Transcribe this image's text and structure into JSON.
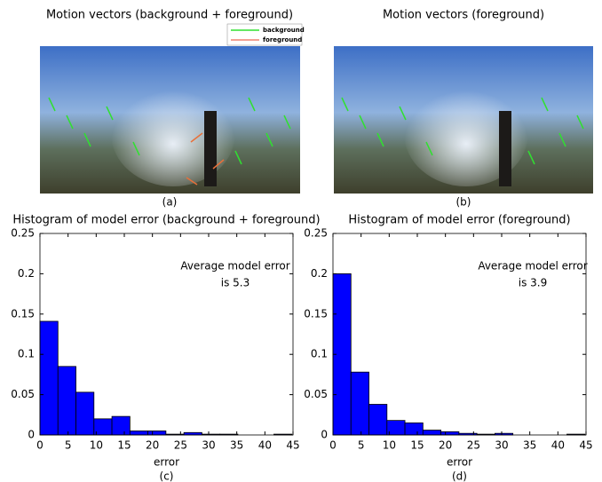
{
  "figure": {
    "panels": [
      {
        "title": "Motion vectors (background + foreground)",
        "caption": "(a)",
        "legend": [
          "background",
          "foreground"
        ]
      },
      {
        "title": "Motion vectors (foreground)",
        "caption": "(b)"
      }
    ]
  },
  "chart_data": [
    {
      "type": "histogram",
      "title": "Histogram of model error (background + foreground)",
      "caption": "(c)",
      "xlabel": "error",
      "annotation": [
        "Average model error",
        "is 5.3"
      ],
      "bins": [
        0,
        3.2,
        6.4,
        9.6,
        12.8,
        16,
        19.2,
        22.4,
        25.6,
        28.8,
        32,
        35.2,
        38.4,
        41.6,
        44.8
      ],
      "counts": [
        0.141,
        0.085,
        0.053,
        0.02,
        0.023,
        0.005,
        0.005,
        0.001,
        0.003,
        0.001,
        0.001,
        0,
        0,
        0.001
      ],
      "color": "#0000ff",
      "xlim": [
        0,
        45
      ],
      "ylim": [
        0,
        0.25
      ],
      "xticks": [
        0,
        5,
        10,
        15,
        20,
        25,
        30,
        35,
        40,
        45
      ],
      "yticks": [
        0,
        0.05,
        0.1,
        0.15,
        0.2,
        0.25
      ]
    },
    {
      "type": "histogram",
      "title": "Histogram of model error (foreground)",
      "caption": "(d)",
      "xlabel": "error",
      "annotation": [
        "Average model error",
        "is 3.9"
      ],
      "bins": [
        0,
        3.2,
        6.4,
        9.6,
        12.8,
        16,
        19.2,
        22.4,
        25.6,
        28.8,
        32,
        35.2,
        38.4,
        41.6,
        44.8
      ],
      "counts": [
        0.2,
        0.078,
        0.038,
        0.018,
        0.015,
        0.006,
        0.004,
        0.002,
        0.001,
        0.002,
        0,
        0,
        0,
        0.001
      ],
      "color": "#0000ff",
      "xlim": [
        0,
        45
      ],
      "ylim": [
        0,
        0.25
      ],
      "xticks": [
        0,
        5,
        10,
        15,
        20,
        25,
        30,
        35,
        40,
        45
      ],
      "yticks": [
        0,
        0.05,
        0.1,
        0.15,
        0.2,
        0.25
      ]
    }
  ]
}
